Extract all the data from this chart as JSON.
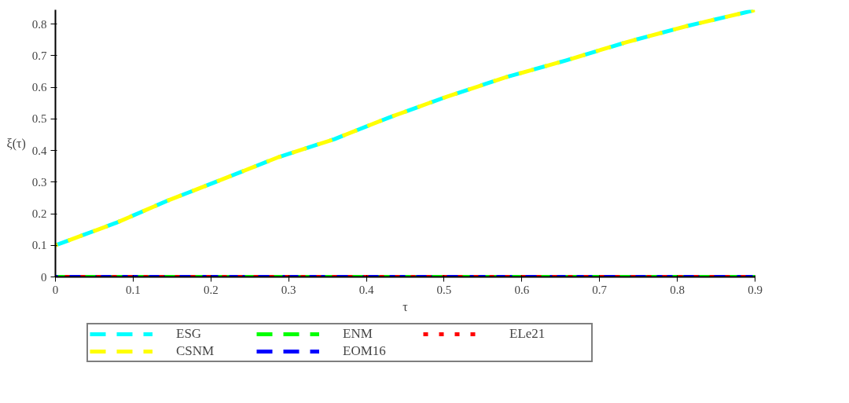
{
  "chart_data": {
    "type": "line",
    "xlabel": "τ",
    "ylabel": "ξ(τ)",
    "xlim": [
      0,
      0.9
    ],
    "ylim": [
      0,
      0.845
    ],
    "xticks": [
      0,
      0.1,
      0.2,
      0.3,
      0.4,
      0.5,
      0.6,
      0.7,
      0.8,
      0.9
    ],
    "yticks": [
      0,
      0.1,
      0.2,
      0.3,
      0.4,
      0.5,
      0.6,
      0.7,
      0.8
    ],
    "grid": false,
    "legend": "bottom",
    "marker": "none",
    "series": [
      {
        "name": "ESG",
        "color": "#00ffff",
        "line_style": "dashed",
        "x": [
          0,
          0.078,
          0.143,
          0.215,
          0.287,
          0.359,
          0.43,
          0.502,
          0.58,
          0.657,
          0.735,
          0.813,
          0.9
        ],
        "values": [
          0.1,
          0.171,
          0.24,
          0.309,
          0.379,
          0.436,
          0.505,
          0.569,
          0.632,
          0.685,
          0.743,
          0.794,
          0.844
        ]
      },
      {
        "name": "CSNM",
        "color": "#ffff00",
        "line_style": "dashed",
        "x": [
          0,
          0.078,
          0.143,
          0.215,
          0.287,
          0.359,
          0.43,
          0.502,
          0.58,
          0.657,
          0.735,
          0.813,
          0.9
        ],
        "values": [
          0.1,
          0.171,
          0.24,
          0.309,
          0.379,
          0.436,
          0.505,
          0.569,
          0.632,
          0.685,
          0.743,
          0.794,
          0.844
        ]
      },
      {
        "name": "ENM",
        "color": "#00ff00",
        "line_style": "dashed",
        "x": [
          0,
          0.9
        ],
        "values": [
          0,
          0
        ]
      },
      {
        "name": "EOM16",
        "color": "#0000ff",
        "line_style": "dashed",
        "x": [
          0,
          0.9
        ],
        "values": [
          0,
          0
        ]
      },
      {
        "name": "ELe21",
        "color": "#ff0000",
        "line_style": "dotted",
        "x": [
          0,
          0.9
        ],
        "values": [
          0,
          0
        ]
      }
    ]
  }
}
